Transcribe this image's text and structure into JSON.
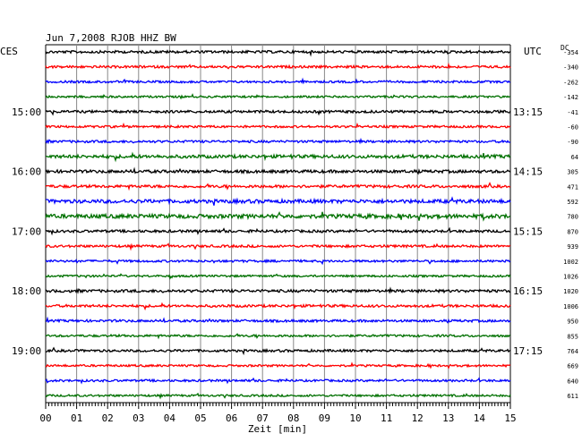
{
  "chart_data": {
    "type": "line",
    "title": "Jun 7,2008    RJOB HHZ BW",
    "xlabel": "Zeit [min]",
    "ylabel_left": "CES",
    "ylabel_right": "UTC",
    "dc_label": "DC",
    "xlim": [
      0,
      15
    ],
    "x_ticks": [
      "00",
      "01",
      "02",
      "03",
      "04",
      "05",
      "06",
      "07",
      "08",
      "09",
      "10",
      "11",
      "12",
      "13",
      "14",
      "15"
    ],
    "trace_colors": [
      "#000000",
      "#ff0000",
      "#0000ff",
      "#007000"
    ],
    "left_time_labels": [
      {
        "trace": 4,
        "label": "15:00"
      },
      {
        "trace": 8,
        "label": "16:00"
      },
      {
        "trace": 12,
        "label": "17:00"
      },
      {
        "trace": 16,
        "label": "18:00"
      },
      {
        "trace": 20,
        "label": "19:00"
      }
    ],
    "right_time_labels": [
      {
        "trace": 4,
        "label": "13:15"
      },
      {
        "trace": 8,
        "label": "14:15"
      },
      {
        "trace": 12,
        "label": "15:15"
      },
      {
        "trace": 16,
        "label": "16:15"
      },
      {
        "trace": 20,
        "label": "17:15"
      }
    ],
    "dc_values": [
      "-354",
      "-340",
      "-262",
      "-142",
      "-41",
      "-60",
      "-90",
      "64",
      "305",
      "471",
      "592",
      "780",
      "870",
      "939",
      "1002",
      "1026",
      "1020",
      "1006",
      "950",
      "855",
      "764",
      "669",
      "640",
      "611"
    ],
    "trace_amplitude": [
      1.4,
      1.3,
      1.2,
      1.1,
      1.4,
      1.2,
      1.3,
      1.8,
      1.6,
      1.5,
      2.0,
      2.2,
      1.4,
      1.3,
      1.2,
      1.1,
      1.5,
      1.4,
      1.3,
      1.2,
      1.3,
      1.1,
      1.2,
      1.1
    ],
    "grid": true
  }
}
